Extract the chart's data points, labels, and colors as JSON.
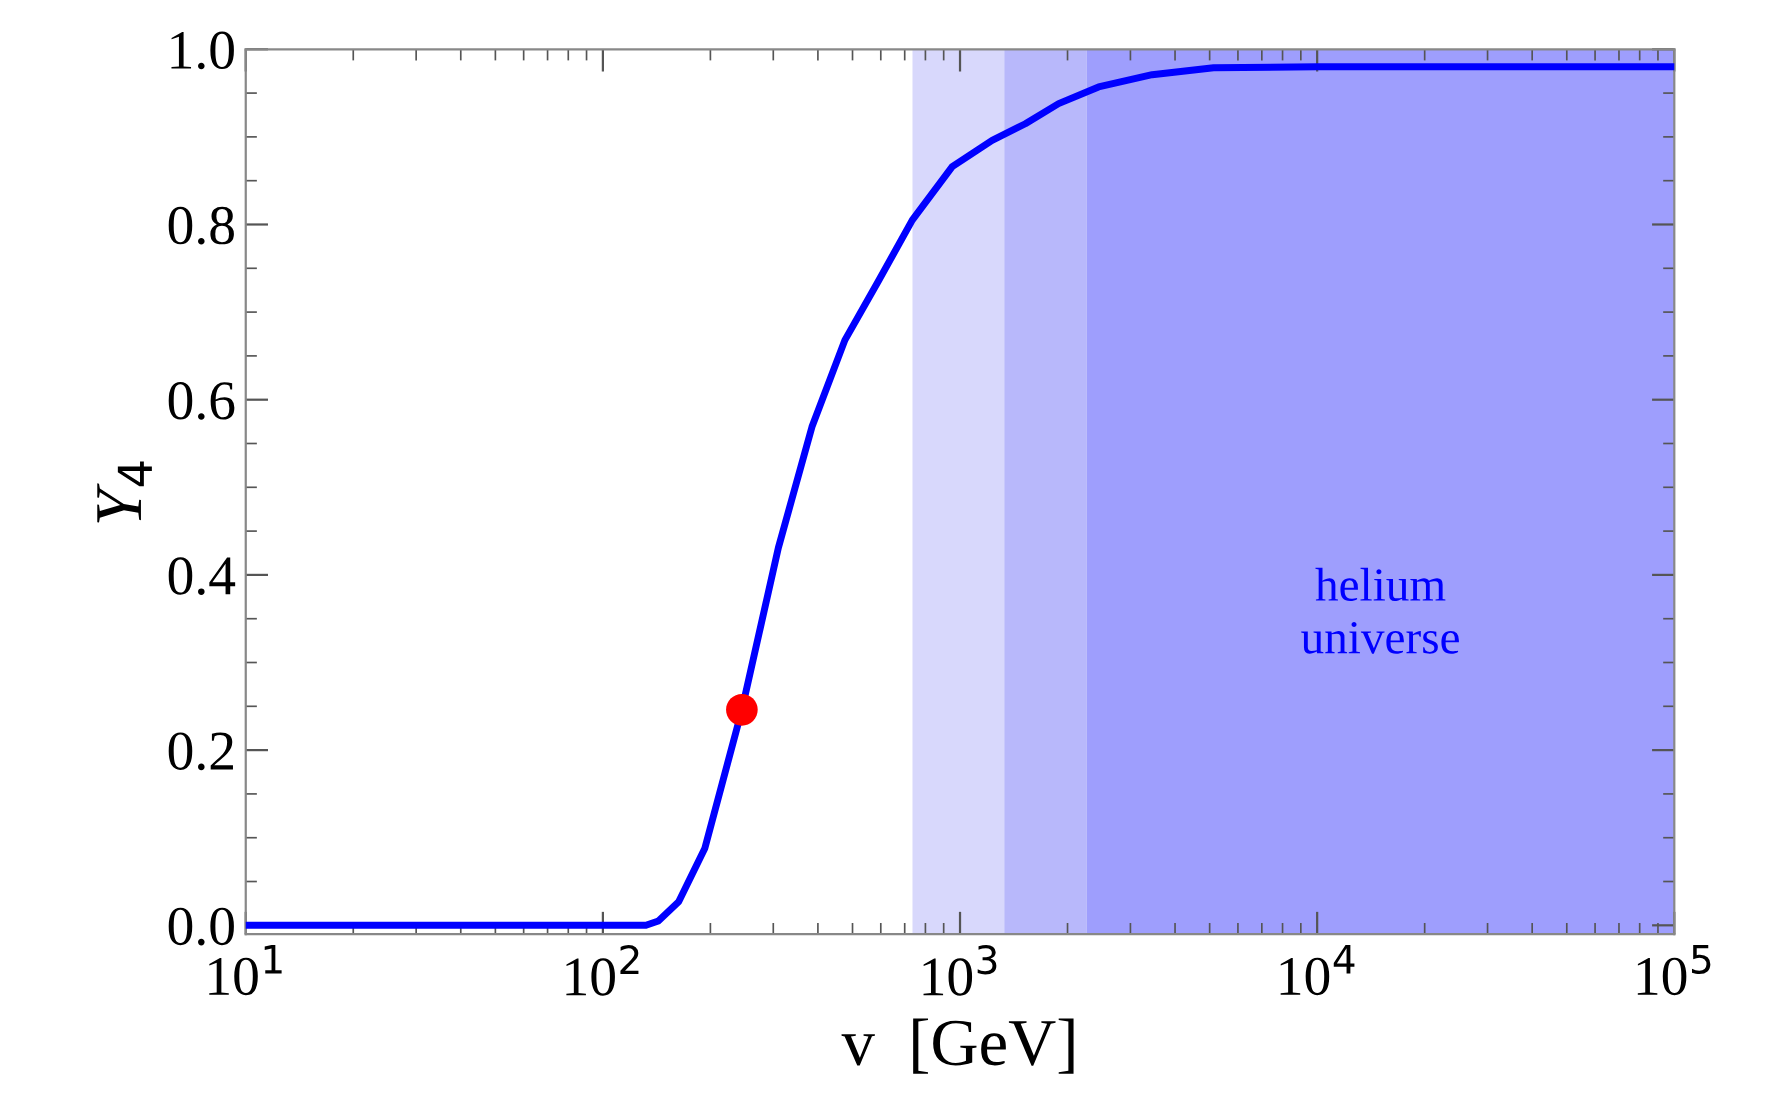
{
  "chart_data": {
    "type": "line",
    "xlabel": "v  [GeV]",
    "ylabel": "Y$_{4}$",
    "log": "x",
    "xlim": [
      10,
      100000
    ],
    "ylim": [
      -0.01,
      1.0
    ],
    "xticks": [
      {
        "value": 10,
        "label": "10$^{1}$"
      },
      {
        "value": 100,
        "label": "10$^{2}$"
      },
      {
        "value": 1000,
        "label": "10$^{3}$"
      },
      {
        "value": 10000,
        "label": "10$^{4}$"
      },
      {
        "value": 100000,
        "label": "10$^{5}$"
      }
    ],
    "yticks": [
      {
        "value": 0,
        "label": "0.0"
      },
      {
        "value": 0.2,
        "label": "0.2"
      },
      {
        "value": 0.4,
        "label": "0.4"
      },
      {
        "value": 0.6,
        "label": "0.6"
      },
      {
        "value": 0.8,
        "label": "0.8"
      },
      {
        "value": 1.0,
        "label": "1.0"
      }
    ],
    "grid": false,
    "legend": false,
    "bands": [
      {
        "axis": "x",
        "from": 736,
        "to": 1330,
        "color": "#d8d8fc"
      },
      {
        "axis": "x",
        "from": 1330,
        "to": 2265,
        "color": "#b8b8fb"
      },
      {
        "axis": "x",
        "from": 2265,
        "to": 100000,
        "color": "#9e9efd",
        "label": "helium\nuniverse"
      }
    ],
    "series": [
      {
        "color": "#0000ff",
        "marker": "none",
        "line_style": "solid",
        "x": [
          10,
          50,
          100,
          132,
          143,
          163,
          193,
          245,
          310,
          385,
          476,
          592,
          735,
          951,
          1230,
          1524,
          1888,
          2443,
          3451,
          5129,
          10000,
          100000
        ],
        "values": [
          0,
          0,
          0,
          0,
          0.005,
          0.027,
          0.088,
          0.246,
          0.431,
          0.569,
          0.668,
          0.736,
          0.805,
          0.866,
          0.896,
          0.915,
          0.938,
          0.957,
          0.971,
          0.979,
          0.98,
          0.98
        ]
      },
      {
        "type": "scatter",
        "color": "#ff0000",
        "marker": "circle",
        "x": [
          245
        ],
        "values": [
          0.246
        ]
      }
    ]
  }
}
